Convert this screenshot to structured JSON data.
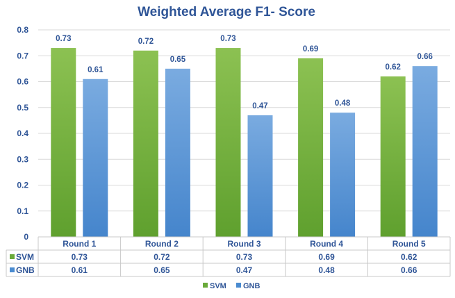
{
  "chart_data": {
    "type": "bar",
    "title": "Weighted Average  F1- Score",
    "categories": [
      "Round 1",
      "Round 2",
      "Round 3",
      "Round 4",
      "Round 5"
    ],
    "series": [
      {
        "name": "SVM",
        "values": [
          0.73,
          0.72,
          0.73,
          0.69,
          0.62
        ],
        "color": "#6aaa3a",
        "color_light": "#8cc152"
      },
      {
        "name": "GNB",
        "values": [
          0.61,
          0.65,
          0.47,
          0.48,
          0.66
        ],
        "color": "#4a8bd0",
        "color_light": "#7aabe0"
      }
    ],
    "ylim": [
      0,
      0.8
    ],
    "yticks": [
      "0",
      "0.1",
      "0.2",
      "0.3",
      "0.4",
      "0.5",
      "0.6",
      "0.7",
      "0.8"
    ],
    "data_labels": {
      "SVM": [
        "0.73",
        "0.72",
        "0.73",
        "0.69",
        "0.62"
      ],
      "GNB": [
        "0.61",
        "0.65",
        "0.47",
        "0.48",
        "0.66"
      ]
    },
    "grid": true,
    "legend": "bottom",
    "data_table": true
  }
}
